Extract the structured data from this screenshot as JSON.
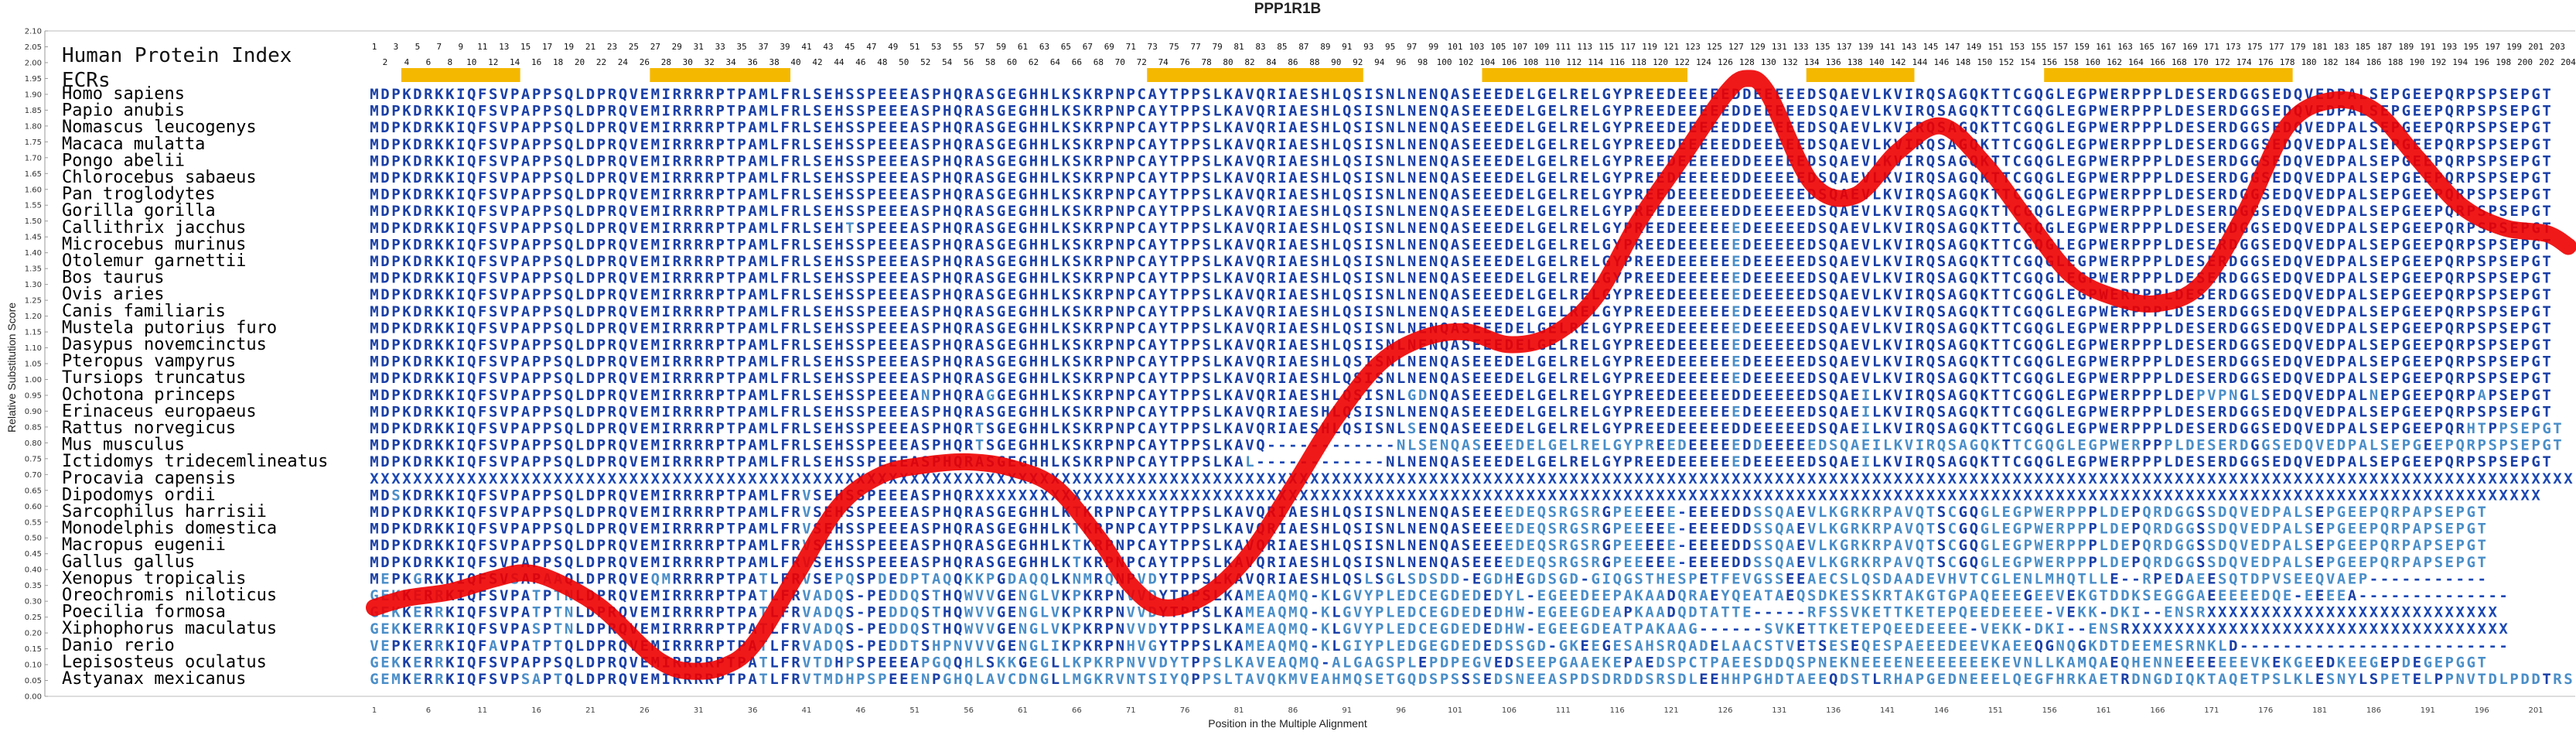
{
  "chart_data": {
    "type": "line",
    "title": "PPP1R1B",
    "xlabel": "Position in the Multiple Alignment",
    "ylabel": "Relative Substitution Score",
    "ylim": [
      0.0,
      2.1
    ],
    "xlim": [
      1,
      204
    ],
    "y_ticks": [
      "2.10",
      "2.05",
      "2.00",
      "1.95",
      "1.90",
      "1.85",
      "1.80",
      "1.75",
      "1.70",
      "1.65",
      "1.60",
      "1.55",
      "1.50",
      "1.45",
      "1.40",
      "1.35",
      "1.30",
      "1.25",
      "1.20",
      "1.15",
      "1.10",
      "1.05",
      "1.00",
      "0.95",
      "0.90",
      "0.85",
      "0.80",
      "0.75",
      "0.70",
      "0.65",
      "0.60",
      "0.55",
      "0.50",
      "0.45",
      "0.40",
      "0.35",
      "0.30",
      "0.25",
      "0.20",
      "0.15",
      "0.10",
      "0.05",
      "0.00"
    ],
    "x_ticks": [
      "1",
      "6",
      "11",
      "16",
      "21",
      "26",
      "31",
      "36",
      "41",
      "46",
      "51",
      "56",
      "61",
      "66",
      "71",
      "76",
      "81",
      "86",
      "91",
      "96",
      "101",
      "106",
      "111",
      "116",
      "121",
      "126",
      "131",
      "136",
      "141",
      "146",
      "151",
      "156",
      "161",
      "166",
      "171",
      "176",
      "181",
      "186",
      "191",
      "196",
      "201"
    ],
    "header_label": "Human Protein Index",
    "ecr_label": "ECRs",
    "ecrs": [
      [
        4,
        14
      ],
      [
        27,
        39
      ],
      [
        73,
        92
      ],
      [
        104,
        122
      ],
      [
        134,
        143
      ],
      [
        156,
        178
      ]
    ],
    "series": [
      {
        "color": "#ee0000",
        "x": [
          1,
          4,
          8,
          12,
          15,
          18,
          22,
          26,
          28,
          30,
          33,
          36,
          40,
          44,
          48,
          52,
          56,
          60,
          64,
          68,
          71,
          74,
          78,
          82,
          86,
          90,
          94,
          98,
          102,
          106,
          110,
          114,
          118,
          122,
          126,
          128,
          130,
          134,
          138,
          142,
          146,
          150,
          154,
          158,
          162,
          166,
          170,
          174,
          178,
          182,
          186,
          190,
          194,
          198,
          202,
          204
        ],
        "y": [
          0.28,
          0.31,
          0.33,
          0.37,
          0.39,
          0.36,
          0.28,
          0.15,
          0.1,
          0.08,
          0.09,
          0.16,
          0.38,
          0.6,
          0.7,
          0.73,
          0.74,
          0.72,
          0.66,
          0.5,
          0.35,
          0.28,
          0.32,
          0.45,
          0.66,
          0.88,
          1.05,
          1.13,
          1.15,
          1.11,
          1.14,
          1.26,
          1.5,
          1.7,
          1.9,
          1.95,
          1.9,
          1.62,
          1.58,
          1.72,
          1.8,
          1.68,
          1.5,
          1.33,
          1.26,
          1.24,
          1.3,
          1.52,
          1.8,
          1.88,
          1.85,
          1.7,
          1.55,
          1.48,
          1.46,
          1.42
        ]
      }
    ],
    "species": [
      "Homo sapiens",
      "Papio anubis",
      "Nomascus leucogenys",
      "Macaca mulatta",
      "Pongo abelii",
      "Chlorocebus sabaeus",
      "Pan troglodytes",
      "Gorilla gorilla",
      "Callithrix jacchus",
      "Microcebus murinus",
      "Otolemur garnettii",
      "Bos taurus",
      "Ovis aries",
      "Canis familiaris",
      "Mustela putorius furo",
      "Dasypus novemcinctus",
      "Pteropus vampyrus",
      "Tursiops truncatus",
      "Ochotona princeps",
      "Erinaceus europaeus",
      "Rattus norvegicus",
      "Mus musculus",
      "Ictidomys tridecemlineatus",
      "Procavia capensis",
      "Dipodomys ordii",
      "Sarcophilus harrisii",
      "Monodelphis domestica",
      "Macropus eugenii",
      "Gallus gallus",
      "Xenopus tropicalis",
      "Oreochromis niloticus",
      "Poecilia formosa",
      "Xiphophorus maculatus",
      "Danio rerio",
      "Lepisosteus oculatus",
      "Astyanax mexicanus"
    ],
    "sequences": [
      "MDPKDRKKIQFSVPAPPSQLDPRQVEMIRRRRPTPAMLFRLSEHSSPEEEASPHQRASGEGHHLKSKRPNPCAYTPPSLKAVQRIAESHLQSISNLNENQASEEEDELGELRELGYPREEDEEEEEDDEEEEEDSQAEVLKVIRQSAGQKTTCGQGLEGPWERPPPLDESERDGGSEDQVEDPALSEPGEEPQRPSPSEPGT",
      "MDPKDRKKIQFSVPAPPSQLDPRQVEMIRRRRPTPAMLFRLSEHSSPEEEASPHQRASGEGHHLKSKRPNPCAYTPPSLKAVQRIAESHLQSISNLNENQASEEEDELGELRELGYPREEDEEEEEDDEEEEEDSQAEVLKVIRQSAGQKTTCGQGLEGPWERPPPLDESERDGGSEDQVEDPALSEPGEEPQRPSPSEPGT",
      "MDPKDRKKIQFSVPAPPSQLDPRQVEMIRRRRPTPAMLFRLSEHSSPEEEASPHQRASGEGHHLKSKRPNPCAYTPPSLKAVQRIAESHLQSISNLNENQASEEEDELGELRELGYPREEDEEEEEDDEEEEEDSQAEVLKVIRQSAGQKTTCGQGLEGPWERPPPLDESERDGGSEDQVEDPALSEPGEEPQRPSPSEPGT",
      "MDPKDRKKIQFSVPAPPSQLDPRQVEMIRRRRPTPAMLFRLSEHSSPEEEASPHQRASGEGHHLKSKRPNPCAYTPPSLKAVQRIAESHLQSISNLNENQASEEEDELGELRELGYPREEDEEEEEDDEEEEEDSQAEVLKVIRQSAGQKTTCGQGLEGPWERPPPLDESERDGGSEDQVEDPALSEPGEEPQRPSPSEPGT",
      "MDPKDRKKIQFSVPAPPSQLDPRQVEMIRRRRPTPAMLFRLSEHSSPEEEASPHQRASGEGHHLKSKRPNPCAYTPPSLKAVQRIAESHLQSISNLNENQASEEEDELGELRELGYPREEDEEEEEDDEEEEEDSQAEVLKVIRQSAGQKTTCGQGLEGPWERPPPLDESERDGGSEDQVEDPALSEPGEEPQRPSPSEPGT",
      "MDPKDRKKIQFSVPAPPSQLDPRQVEMIRRRRPTPAMLFRLSEHSSPEEEASPHQRASGEGHHLKSKRPNPCAYTPPSLKAVQRIAESHLQSISNLNENQASEEEDELGELRELGYPREEDEEEEEDDEEEEEDSQAEVLKVIRQSAGQKTTCGQGLEGPWERPPPLDESERDGGSEDQVEDPALSEPGEEPQRPSPSEPGT",
      "MDPKDRKKIQFSVPAPPSQLDPRQVEMIRRRRPTPAMLFRLSEHSSPEEEASPHQRASGEGHHLKSKRPNPCAYTPPSLKAVQRIAESHLQSISNLNENQASEEEDELGELRELGYPREEDEEEEEDDEEEEEDSQAEVLKVIRQSAGQKTTCGQGLEGPWERPPPLDESERDGGSEDQVEDPALSEPGEEPQRPSPSEPGT",
      "MDPKDRKKIQFSVPAPPSQLDPRQVEMIRRRRPTPAMLFRLSEHSSPEEEASPHQRASGEGHHLKSKRPNPCAYTPPSLKAVQRIAESHLQSISNLNENQASEEEDELGELRELGYPREEDEEEEEDDEEEEEDSQAEVLKVIRQSAGQKTTCGQGLEGPWERPPPLDESERDGGSEDQVEDPALSEPGEEPQRPSPSEPGT",
      "MDPKDRKKIQFSVPAPPSQLDPRQVEMIRRRRPTPAMLFRLSEHTSPEEEASPHQRASGEGHHLKSKRPNPCAYTPPSLKAVQRIAESHLQSISNLNENQASEEEDELGELRELGYPREEDEEEEEEDEEEEEDSQAEVLKVIRQSAGQKTTCGQGLEGPWERPPPLDESERDGGSEDQVEDPALSEPGEEPQRPSPSEPGT",
      "MDPKDRKKIQFSVPAPPSQLDPRQVEMIRRRRPTPAMLFRLSEHSSPEEEASPHQRASGEGHHLKSKRPNPCAYTPPSLKAVQRIAESHLQSISNLNENQASEEEDELGELRELGYPREEDEEEEEEDEEEEEDSQAEVLKVIRQSAGQKTTCGQGLEGPWERPPPLDESERDGGSEDQVEDPALSEPGEEPQRPSPSEPGT",
      "MDPKDRKKIQFSVPAPPSQLDPRQVEMIRRRRPTPAMLFRLSEHSSPEEEASPHQRASGEGHHLKSKRPNPCAYTPPSLKAVQRIAESHLQSISNLNENQASEEEDELGELRELGYPREEDEEEEEEDEEEEEDSQAEVLKVIRQSAGQKTTCGQGLEGPWERPPPLDESERDGGSEDQVEDPALSEPGEEPQRPSPSEPGT",
      "MDPKDRKKIQFSVPAPPSQLDPRQVEMIRRRRPTPAMLFRLSEHSSPEEEASPHQRASGEGHHLKSKRPNPCAYTPPSLKAVQRIAESHLQSISNLNENQASEEEDELGELRELGYPREEDEEEEEEDEEEEEDSQAEVLKVIRQSAGQKTTCGQGLEGPWERPPPLDESERDGGSEDQVEDPALSEPGEEPQRPSPSEPGT",
      "MDPKDRKKIQFSVPAPPSQLDPRQVEMIRRRRPTPAMLFRLSEHSSPEEEASPHQRASGEGHHLKSKRPNPCAYTPPSLKAVQRIAESHLQSISNLNENQASEEEDELGELRELGYPREEDEEEEEEDEEEEEDSQAEVLKVIRQSAGQKTTCGQGLEGPWERPPPLDESERDGGSEDQVEDPALSEPGEEPQRPSPSEPGT",
      "MDPKDRKKIQFSVPAPPSQLDPRQVEMIRRRRPTPAMLFRLSEHSSPEEEASPHQRASGEGHHLKSKRPNPCAYTPPSLKAVQRIAESHLQSISNLNENQASEEEDELGELRELGYPREEDEEEEEEDEEEEEDSQAEVLKVIRQSAGQKTTCGQGLEGPWERPPPLDESERDGGSEDQVEDPALSEPGEEPQRPSPSEPGT",
      "MDPKDRKKIQFSVPAPPSQLDPRQVEMIRRRRPTPAMLFRLSEHSSPEEEASPHQRASGEGHHLKSKRPNPCAYTPPSLKAVQRIAESHLQSISNLNENQASEEEDELGELRELGYPREEDEEEEEEDEEEEEDSQAEVLKVIRQSAGQKTTCGQGLEGPWERPPPLDESERDGGSEDQVEDPALSEPGEEPQRPSPSEPGT",
      "MDPKDRKKIQFSVPAPPSQLDPRQVEMIRRRRPTPAMLFRLSEHSSPEEEASPHQRASGEGHHLKSKRPNPCAYTPPSLKAVQRIAESHLQSISNLNENQASEEEDELGELRELGYPREEDEEEEEEDEEEEEDSQAEVLKVIRQSAGQKTTCGQGLEGPWERPPPLDESERDGGSEDQVEDPALSEPGEEPQRPSPSEPGT",
      "MDPKDRKKIQFSVPAPPSQLDPRQVEMIRRRRPTPAMLFRLSEHSSPEEEASPHQRASGEGHHLKSKRPNPCAYTPPSLKAVQRIAESHLQSISNLNENQASEEEDELGELRELGYPREEDEEEEEEDEEEEEDSQAEVLKVIRQSAGQKTTCGQGLEGPWERPPPLDESERDGGSEDQVEDPALSEPGEEPQRPSPSEPGT",
      "MDPKDRKKIQFSVPAPPSQLDPRQVEMIRRRRPTPAMLFRLSEHSSPEEEASPHQRASGEGHHLKSKRPNPCAYTPPSLKAVQRIAESHLQSISNLNENQASEEEDELGELRELGYPREEDEEEEEEDEEEEEDSQAEVLKVIRQSAGQKTTCGQGLEGPWERPPPLDESERDGGSEDQVEDPALSEPGEEPQRPSPSEPGT",
      "MDPKDRKKIQFSVPAPPSQLDPRQVEMIRRRRPTPAMLFRLSEHSSPEEEANPHQRAGGEGHHLKSKRPNPCAYTPPSLKAVQRIAESHLQSISNLGDNQASEEEDELGELRELGYPREEDEEEEEDDEEEEEDSQAEILKVIRQSAGQKTTCGQGLEGPWERPPPLDEPVPNGLSEDQVEDPALNEPGEEPQRPAPSEPGT",
      "MDPKDRKKIQFSVPAPPSQLDPRQVEMIRRRRPTPAMLFRLSEHSSPEEEASPHQRASGEGHHLKSKRPNPCAYTPPSLKAVQRIAESHLQSISNLNENQASEEEDELGELRELGYPREEDEEEEEEDEEEEEDSQAEILKVIRQSAGQKTTCGQGLEGPWERPPPLDESERDGGSEDQVEDPALSEPGEEPQRPSPSEPGT",
      "MDPKDRKKIQFSVPAPPSQLDPRQVEMIRRRRPTPAMLFRLSEHSSPEEEASPHQRTSGEGHHLKSKRPNPCAYTPPSLKAVQRIAESHLQSISNLSENQASEEEDELGELRELGYPREEDEEEEEDDEEEEEDSQAEILKVIRQSAGQKTTCGQGLEGPWERPPPLDESERDGGSEDQVEDPALSEPGEEPQRHTPPSEPGT",
      "MDPKDRKKIQFSVPAPPSQLDPRQVEMIRRRRPTPAMLFRLSEHSSPEEEASPHQRTSGEGHHLKSKRPNPCAYTPPSLKAVQ------------NLSENQASEEEDELGELRELGYPREEDEEEEEDDEEEEEDSQAEILKVIRQSAGQKTTCGQGLEGPWERPPPLDESERDGGSEDQVEDPALSEPGEEPQRPSPSEPGT",
      "MDPKDRKKIQFSVPAPPSQLDPRQVEMIRRRRPTPAMLFRLSEHSSPEEEASPHQRASGEGHHLKSKRPNPCAYTPPSLKAL------------NLNENQASEEEDELGELRELGYPREEDEEEEEEDEEEEEDSQAEILKVIRQSAGQKTTCGQGLEGPWERPPPLDESERDGGSEDQVEDPALSEPGEEPQRPSPSEPGT",
      "XXXXXXXXXXXXXXXXXXXXXXXXXXXXXXXXXXXXXXXXXXXXXXXXXXXXXXXXXXXXXXXXXXXXXXXXXXXXXXXXXXXXXXXXXXXXXXXXXXXXXXXXXXXXXXXXXXXXXXXXXXXXXXXXXXXXXXXXXXXXXXXXXXXXXXXXXXXXXXXXXXXXXXXXXXXXXXXXXXXXXXXXXXXXXXXXXXXXXXXXXXXX",
      "MDSKDRKKIQFSVPAPPSQLDPRQVEMIRRRRPTPAMLFRVSEHSSPEEEASPHQRXXXXXXXXXXXXXXXXXXXXXXXXXXXXXXXXXXXXXXXXXXXXXXXXXXXXXXXXXXXXXXXXXXXXXXXXXXXXXXXXXXXXXXXXXXXXXXXXXXXXXXXXXXXXXXXXXXXXXXXXXXXXXXXXXXXXXXXXXXXXXXXXX",
      "MDPKDRKKIQFSVPAPPSQLDPRQVEMIRRRRPTPAMLFRVSEHSSPEEEASPHQRASGEGHHLKTKRPNPCAYTPPSLKAVQRIAESHLQSISNLNENQASEEEEDEQSRGSRGPEEEEE-EEEEDDSSQAEVLKGRKRPAVQTSCGQGLEGPWERPPPLDEPQRDGGSSDQVEDPALSEPGEEPQRPAPSEPGT",
      "MDPKDRKKIQFSVPAPPSQLDPRQVEMIRRRRPTPAMLFRVSEHSSPEEEASPHQRASGEGHHLKTKRPNPCAYTPPSLKAVQRIAESHLQSISNLNENQASEEEEDEQSRGSRGPEEEEE-EEEEDDSSQAEVLKGRKRPAVQTSCGQGLEGPWERPPPLDEPQRDGGSSDQVEDPALSEPGEEPQRPAPSEPGT",
      "MDPKDRKKIQFSVPAPPSQLDPRQVEMIRRRRPTPAMLFRVSEHSSPEEEASPHQRASGEGHHLKTKRPNPCAYTPPSLKAVQRIAESHLQSISNLNENQASEEEEDEQSRGSRGPEEEEE-EEEEDDSSQAEVLKGRKRPAVQTSCGQGLEGPWERPPPLDEPQRDGGSSDQVEDPALSEPGEEPQRPAPSEPGT",
      "MDPKDRKKIQFSVPAPPSQLDPRQVEMIRRRRPTPAMLFRVSEHSSPEEEASPHQRASGEGHHLKTKRPNPCAYTPPSLKAVQRIAESHLQSISNLNENQASEEEEDEQSRGSRGPEEEEE-EEEEDDSSQAEVLKGRKRPAVQTSCGQGLEGPWERPPPLDEPQRDGGSSDQVEDPALSEPGEEPQRPAPSEPGT",
      "MEPKGRKKIQFSVSAPAAQLDPRQVEQMRRRRPTPATLFRVSEPQSPDEDPTAQQKKPGDAQQLKNMRQNPVDYTPPSLKAVQRIAESHLQSLSGLSDSDD-EGDHEGDSGD-GIQGSTHESPETFEVGSSEEAECSLQSDAADEVHVTCGLENLMHQTLLE--RPEDAEESQTDPVSEEQVAEP-----------",
      "GEKKERRKIQFSVPATPTNLDPRQVEMIRRRRPTPATLFRVADQS-PEDDQSTHQWVVGENGLVKPKRPNVVDYTPPSLKAMEAQMQ-KLGVYPLEDCEGDEDEDYL-EGEEDEEPAKAADQRAEYQEATAEQSDKESSKRTAKGTGPAQEEEGEEVEKGTDDKSEGGGAEEEEEDQE-EEEEA--------------",
      "GEKKERRKIQFSVPATPTNLDPRQVEMIRRRRPTPATLFRVADQS-PEDDQSTHQWVVGENGLVKPKRPNVVDYTPPSLKAMEAQMQ-KLGVYPLEDCEGDEDEDHW-EGEEGDEAPKAADQDTATTE-----RFSSVKETTKETEPQEEDEEEE-VEKK-DKI--ENSRXXXXXXXXXXXXXXXXXXXXXXXXXXX",
      "GEKKERRKIQFSVPASPTNLDPRQVEMIRRRRPTPATLFRVADQS-PEDDQSTHQWVVGENGLVKPKRPNVVDYTPPSLKAMEAQMQ-KLGVYPLEDCEGDEDEDHW-EGEEGDEATPAKAAG------SVKETTKETEPQEEDEEEE-VEKK-DKI--ENSRXXXXXXXXXXXXXXXXXXXXXXXXXXXXXXXXXXX",
      "VEPKERRKIQFAVPATPTQLDPRQVEMIRRRRPTPATLFRVADQS-PEDDTSHPNVVVGENGLIKPKRPNHVGYTPPSLKAMEAQMQ-KLGIYPLEDGEGDEDEDSSGD-GKEEGESAHSRQADELAACSTVETSESEQESPAEEEDEEVKAEEQGNQGKDTDEEMESRNKLD-------------------------",
      "GEKKERRKIQFSVPAPPSQLDPRQVEMIRRRRPTPATLFRVTDHPSPEEEAPGQQHLSKKGEGLLKPKRPNVVDYTPPSLKAVEAQMQ-ALGAGSPLEPDPEGVEDSEEPGAAEKEPAEDSPCTPAEESDDQSPNEKNEEEENEEEEEEEKEVNLLKAMQAEQHENNEEEEEEEVKEKGEEDKEEGEPDEGEPGGT",
      "GEMKERRKIQFSVPSAPTQLDPRQVEMIRRRRPTPATLFRVTMDHPSPEEENPGHQLAVCDNGLLMGKRVNTSIYQPPSLTAVQKMVEAHMQSETGQDSPSSSEDSNEEASPDSDRDDSRSDLEEHHPGHDTAEEQDSTLRHAPGEDNEEELQEGFHRKAETRDNGDIQKTAQETPSLKLESNYLSPETELPPNVTDLPDDTRSDS"
    ]
  }
}
